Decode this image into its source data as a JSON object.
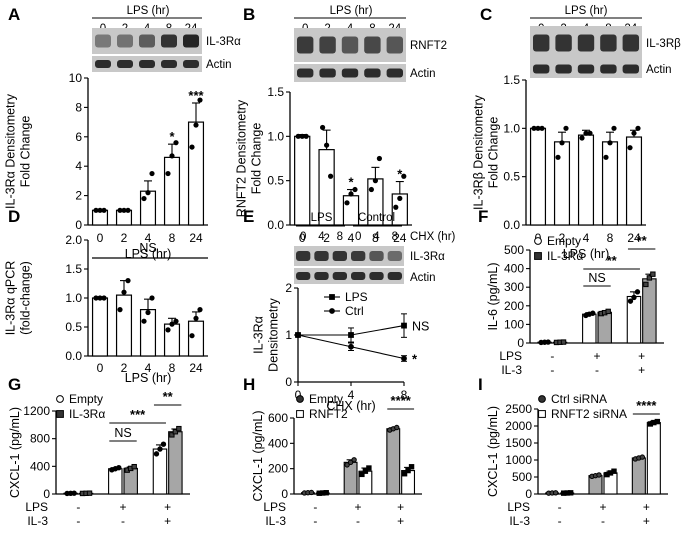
{
  "chart_data": [
    {
      "panel": "A",
      "type": "bar",
      "blot": {
        "header": "LPS (hr)",
        "lanes": [
          "0",
          "2",
          "4",
          "8",
          "24"
        ],
        "rows": [
          "IL-3Rα",
          "Actin"
        ]
      },
      "categories": [
        "0",
        "2",
        "4",
        "8",
        "24"
      ],
      "values": [
        1.0,
        1.0,
        2.3,
        4.6,
        7.0
      ],
      "errors": [
        0.05,
        0.05,
        0.7,
        0.9,
        1.3
      ],
      "points": [
        [
          1.0,
          1.0,
          1.0
        ],
        [
          1.0,
          1.0,
          1.0
        ],
        [
          1.8,
          2.2,
          3.5
        ],
        [
          3.5,
          4.7,
          5.6
        ],
        [
          5.3,
          6.8,
          8.5
        ]
      ],
      "significance": [
        "",
        "",
        "",
        "*",
        "***"
      ],
      "xlabel": "LPS (hr)",
      "ylabel": "IL-3Rα Densitometry Fold Change",
      "ylim": [
        0,
        10
      ],
      "yticks": [
        "0",
        "2",
        "4",
        "6",
        "8",
        "10"
      ]
    },
    {
      "panel": "B",
      "type": "bar",
      "blot": {
        "header": "LPS (hr)",
        "lanes": [
          "0",
          "2",
          "4",
          "8",
          "24"
        ],
        "rows": [
          "RNFT2",
          "Actin"
        ]
      },
      "categories": [
        "0",
        "2",
        "4",
        "8",
        "24"
      ],
      "values": [
        1.0,
        0.85,
        0.33,
        0.52,
        0.35
      ],
      "errors": [
        0.02,
        0.22,
        0.07,
        0.13,
        0.14
      ],
      "points": [
        [
          1.0,
          1.0,
          1.0
        ],
        [
          1.1,
          0.9,
          0.55
        ],
        [
          0.25,
          0.35,
          0.4
        ],
        [
          0.4,
          0.5,
          0.75
        ],
        [
          0.2,
          0.3,
          0.55
        ]
      ],
      "significance": [
        "",
        "",
        "*",
        "",
        "*"
      ],
      "xlabel": "LPS (hr)",
      "ylabel": "RNFT2 Densitometry Fold Change",
      "ylim": [
        0,
        1.5
      ],
      "yticks": [
        "0.0",
        "0.5",
        "1.0",
        "1.5"
      ]
    },
    {
      "panel": "C",
      "type": "bar",
      "blot": {
        "header": "LPS (hr)",
        "lanes": [
          "0",
          "2",
          "4",
          "8",
          "24"
        ],
        "rows": [
          "IL-3Rβ",
          "Actin"
        ]
      },
      "categories": [
        "0",
        "2",
        "4",
        "8",
        "24"
      ],
      "values": [
        1.0,
        0.86,
        0.93,
        0.86,
        0.91
      ],
      "errors": [
        0.01,
        0.1,
        0.05,
        0.1,
        0.07
      ],
      "points": [
        [
          1.0,
          1.0,
          1.0
        ],
        [
          0.7,
          0.85,
          1.0
        ],
        [
          0.9,
          0.95,
          0.95
        ],
        [
          0.7,
          0.85,
          1.0
        ],
        [
          0.8,
          0.95,
          1.0
        ]
      ],
      "significance": [
        "",
        "",
        "",
        "",
        ""
      ],
      "xlabel": "LPS (hr)",
      "ylabel": "IL-3Rβ Densitometry Fold Change",
      "ylim": [
        0,
        1.5
      ],
      "yticks": [
        "0.0",
        "0.5",
        "1.0",
        "1.5"
      ]
    },
    {
      "panel": "D",
      "type": "bar",
      "categories": [
        "0",
        "2",
        "4",
        "8",
        "24"
      ],
      "values": [
        1.0,
        1.05,
        0.8,
        0.55,
        0.6
      ],
      "errors": [
        0.02,
        0.25,
        0.18,
        0.1,
        0.16
      ],
      "points": [
        [
          1.0,
          1.0,
          1.0
        ],
        [
          0.8,
          1.1,
          1.3
        ],
        [
          0.6,
          0.75,
          1.0
        ],
        [
          0.45,
          0.55,
          0.6
        ],
        [
          0.35,
          0.65,
          0.8
        ]
      ],
      "group_label": "NS",
      "xlabel": "LPS (hr)",
      "ylabel": "IL-3Rα qPCR (fold-change)",
      "ylim": [
        0,
        2.0
      ],
      "yticks": [
        "0.0",
        "0.5",
        "1.0",
        "1.5",
        "2.0"
      ]
    },
    {
      "panel": "E",
      "type": "line",
      "blot": {
        "groups": [
          "LPS",
          "Control"
        ],
        "lanes": [
          "0",
          "4",
          "8",
          "0",
          "4",
          "8"
        ],
        "side_label": "CHX (hr)",
        "rows": [
          "IL-3Rα",
          "Actin"
        ]
      },
      "x": [
        0,
        4,
        8
      ],
      "series": [
        {
          "name": "LPS",
          "values": [
            1.0,
            1.0,
            1.2
          ],
          "errors": [
            0.02,
            0.15,
            0.25
          ],
          "marker": "square",
          "annotation": "NS"
        },
        {
          "name": "Ctrl",
          "values": [
            1.0,
            0.75,
            0.5
          ],
          "errors": [
            0.02,
            0.08,
            0.06
          ],
          "marker": "circle",
          "annotation": "*"
        }
      ],
      "xlabel": "CHX (hr)",
      "ylabel": "IL-3Rα Densitometry",
      "xlim": [
        0,
        8
      ],
      "ylim": [
        0,
        2.0
      ],
      "xticks": [
        "0",
        "4",
        "8"
      ],
      "yticks": [
        "0",
        "1",
        "2"
      ]
    },
    {
      "panel": "F",
      "type": "bar",
      "legend": [
        {
          "label": "Empty",
          "marker": "circle",
          "fill": "#ffffff"
        },
        {
          "label": "IL-3Rα",
          "marker": "square",
          "fill": "#a6a6a6"
        }
      ],
      "groups": [
        {
          "lps": "-",
          "il3": "-"
        },
        {
          "lps": "+",
          "il3": "-"
        },
        {
          "lps": "+",
          "il3": "+"
        }
      ],
      "condition_labels": [
        "LPS",
        "IL-3"
      ],
      "series": [
        {
          "name": "Empty",
          "values": [
            4,
            155,
            250
          ],
          "errors": [
            1,
            8,
            25
          ],
          "points": [
            [
              3,
              4,
              5
            ],
            [
              148,
              155,
              160
            ],
            [
              225,
              245,
              275
            ]
          ]
        },
        {
          "name": "IL-3Rα",
          "values": [
            4,
            165,
            345
          ],
          "errors": [
            1,
            6,
            25
          ],
          "points": [
            [
              3,
              4,
              5
            ],
            [
              158,
              163,
              170
            ],
            [
              315,
              350,
              370
            ]
          ]
        }
      ],
      "brackets": [
        {
          "from": [
            1,
            0
          ],
          "to": [
            1,
            1
          ],
          "label": "NS"
        },
        {
          "from": [
            1,
            0
          ],
          "to": [
            2,
            0
          ],
          "label": "**"
        },
        {
          "from": [
            2,
            0
          ],
          "to": [
            2,
            1
          ],
          "label": "**"
        }
      ],
      "ylabel": "IL-6 (pg/mL)",
      "ylim": [
        0,
        500
      ],
      "yticks": [
        "0",
        "100",
        "200",
        "300",
        "400",
        "500"
      ]
    },
    {
      "panel": "G",
      "type": "bar",
      "legend": [
        {
          "label": "Empty",
          "marker": "circle",
          "fill": "#ffffff"
        },
        {
          "label": "IL-3Rα",
          "marker": "square",
          "fill": "#a6a6a6"
        }
      ],
      "groups": [
        {
          "lps": "-",
          "il3": "-"
        },
        {
          "lps": "+",
          "il3": "-"
        },
        {
          "lps": "+",
          "il3": "+"
        }
      ],
      "condition_labels": [
        "LPS",
        "IL-3"
      ],
      "series": [
        {
          "name": "Empty",
          "values": [
            10,
            365,
            650
          ],
          "errors": [
            2,
            15,
            60
          ],
          "points": [
            [
              8,
              10,
              12
            ],
            [
              350,
              365,
              380
            ],
            [
              580,
              650,
              720
            ]
          ]
        },
        {
          "name": "IL-3Rα",
          "values": [
            10,
            370,
            900
          ],
          "errors": [
            2,
            20,
            40
          ],
          "points": [
            [
              8,
              10,
              12
            ],
            [
              345,
              370,
              395
            ],
            [
              855,
              900,
              945
            ]
          ]
        }
      ],
      "brackets": [
        {
          "from": [
            1,
            0
          ],
          "to": [
            1,
            1
          ],
          "label": "NS"
        },
        {
          "from": [
            1,
            0
          ],
          "to": [
            2,
            0
          ],
          "label": "***"
        },
        {
          "from": [
            2,
            0
          ],
          "to": [
            2,
            1
          ],
          "label": "**"
        }
      ],
      "ylabel": "CXCL-1 (pg/mL)",
      "ylim": [
        0,
        1200
      ],
      "yticks": [
        "0",
        "400",
        "800",
        "1200"
      ]
    },
    {
      "panel": "H",
      "type": "bar",
      "legend": [
        {
          "label": "Empty",
          "marker": "circle",
          "fill": "#a6a6a6"
        },
        {
          "label": "RNFT2",
          "marker": "square",
          "fill": "#ffffff"
        }
      ],
      "groups": [
        {
          "lps": "-",
          "il3": "-"
        },
        {
          "lps": "+",
          "il3": "-"
        },
        {
          "lps": "+",
          "il3": "+"
        }
      ],
      "condition_labels": [
        "LPS",
        "IL-3"
      ],
      "series": [
        {
          "name": "Empty",
          "values": [
            10,
            250,
            515
          ],
          "errors": [
            2,
            20,
            8
          ],
          "points": [
            [
              8,
              10,
              12
            ],
            [
              230,
              250,
              270
            ],
            [
              505,
              515,
              525
            ]
          ]
        },
        {
          "name": "RNFT2",
          "values": [
            8,
            180,
            185
          ],
          "errors": [
            2,
            25,
            25
          ],
          "points": [
            [
              6,
              8,
              10
            ],
            [
              155,
              180,
              205
            ],
            [
              160,
              185,
              215
            ]
          ]
        }
      ],
      "brackets": [
        {
          "from": [
            2,
            0
          ],
          "to": [
            2,
            1
          ],
          "label": "****"
        }
      ],
      "ylabel": "CXCL-1 (pg/mL)",
      "ylim": [
        0,
        600
      ],
      "yticks": [
        "0",
        "200",
        "400",
        "600"
      ]
    },
    {
      "panel": "I",
      "type": "bar",
      "legend": [
        {
          "label": "Ctrl siRNA",
          "marker": "circle",
          "fill": "#a6a6a6"
        },
        {
          "label": "RNFT2 siRNA",
          "marker": "square",
          "fill": "#ffffff"
        }
      ],
      "groups": [
        {
          "lps": "-",
          "il3": "-"
        },
        {
          "lps": "+",
          "il3": "-"
        },
        {
          "lps": "+",
          "il3": "+"
        }
      ],
      "condition_labels": [
        "LPS",
        "IL-3"
      ],
      "series": [
        {
          "name": "Ctrl siRNA",
          "values": [
            30,
            540,
            1060
          ],
          "errors": [
            5,
            20,
            30
          ],
          "points": [
            [
              25,
              30,
              35
            ],
            [
              520,
              540,
              560
            ],
            [
              1030,
              1060,
              1085
            ]
          ]
        },
        {
          "name": "RNFT2 siRNA",
          "values": [
            30,
            620,
            2100
          ],
          "errors": [
            5,
            50,
            40
          ],
          "points": [
            [
              25,
              30,
              35
            ],
            [
              570,
              620,
              670
            ],
            [
              2060,
              2100,
              2130
            ]
          ]
        }
      ],
      "brackets": [
        {
          "from": [
            2,
            0
          ],
          "to": [
            2,
            1
          ],
          "label": "****"
        }
      ],
      "ylabel": "CXCL-1 (pg/mL)",
      "ylim": [
        0,
        2500
      ],
      "yticks": [
        "0",
        "500",
        "1000",
        "1500",
        "2000",
        "2500"
      ]
    }
  ]
}
